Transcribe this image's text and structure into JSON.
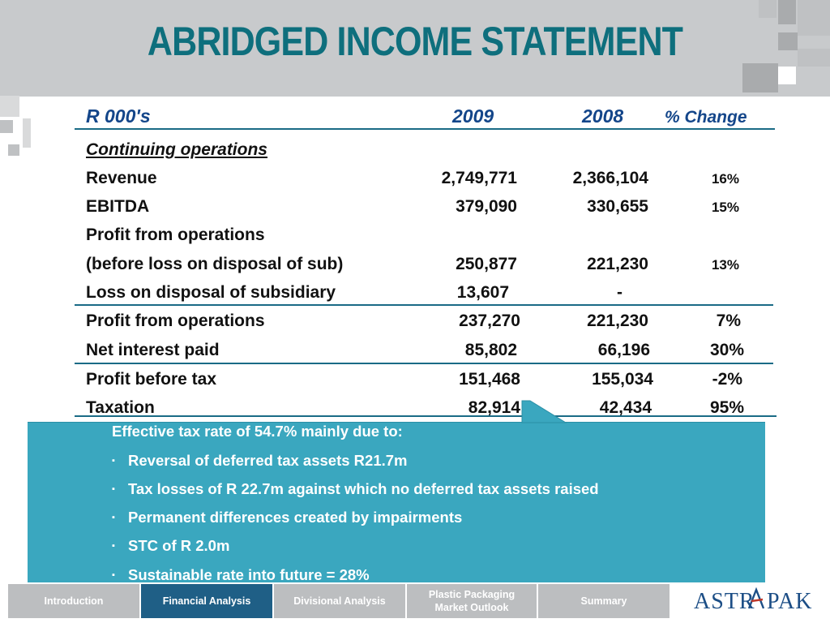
{
  "title": "ABRIDGED INCOME STATEMENT",
  "table": {
    "header": {
      "unit": "R 000's",
      "col_2009": "2009",
      "col_2008": "2008",
      "col_change": "% Change"
    },
    "section": "Continuing operations",
    "rows": [
      {
        "label": "Revenue",
        "v2009": "2,749,771",
        "v2008": "2,366,104",
        "change": "16%"
      },
      {
        "label": "EBITDA",
        "v2009": "379,090",
        "v2008": "330,655",
        "change": "15%"
      },
      {
        "label": "Profit from operations",
        "v2009": "",
        "v2008": "",
        "change": ""
      },
      {
        "label": "(before loss on disposal of sub)",
        "v2009": "250,877",
        "v2008": "221,230",
        "change": "13%"
      },
      {
        "label": "Loss on disposal of subsidiary",
        "v2009": "13,607",
        "v2008": "-",
        "change": ""
      },
      {
        "label": "Profit from operations",
        "v2009": "237,270",
        "v2008": "221,230",
        "change": "7%"
      },
      {
        "label": "Net interest paid",
        "v2009": "85,802",
        "v2008": "66,196",
        "change": "30%"
      },
      {
        "label": "Profit before tax",
        "v2009": "151,468",
        "v2008": "155,034",
        "change": "-2%"
      },
      {
        "label": "Taxation",
        "v2009": "82,914",
        "v2008": "42,434",
        "change": "95%"
      }
    ]
  },
  "callout": {
    "heading": "Effective tax rate of 54.7% mainly due to:",
    "bullets": [
      " Reversal of deferred tax assets R21.7m",
      "Tax losses of R 22.7m against which no deferred tax assets raised",
      "Permanent differences created by impairments",
      "STC of R 2.0m",
      "Sustainable rate into future = 28%"
    ],
    "bullet_glyph": "▪"
  },
  "nav": {
    "tabs": [
      {
        "label": "Introduction"
      },
      {
        "label": "Financial Analysis"
      },
      {
        "label": "Divisional Analysis"
      },
      {
        "label": "Plastic Packaging Market Outlook"
      },
      {
        "label": "Summary"
      }
    ],
    "active_tab": "Financial Analysis"
  },
  "logo": {
    "text_1": "ASTR",
    "text_2": "PAK",
    "icon": "astrapak-a-logo"
  },
  "colors": {
    "title": "#0e6f7d",
    "header_text": "#14468a",
    "callout_bg": "#3aa7bf",
    "active_tab": "#1f5f86",
    "tab": "#bcbec0",
    "band": "#c8cacc"
  }
}
